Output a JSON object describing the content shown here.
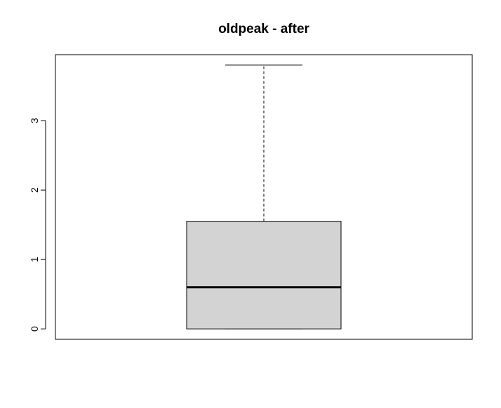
{
  "chart_data": {
    "type": "boxplot",
    "title": "oldpeak - after",
    "xlabel": "",
    "ylabel": "",
    "ylim": [
      -0.15,
      3.95
    ],
    "y_ticks": [
      {
        "value": 0,
        "label": "0"
      },
      {
        "value": 1,
        "label": "1"
      },
      {
        "value": 2,
        "label": "2"
      },
      {
        "value": 3,
        "label": "3"
      }
    ],
    "box": {
      "min": 0,
      "q1": 0,
      "median": 0.6,
      "q3": 1.55,
      "max": 3.8
    },
    "grid": false,
    "legend": "none",
    "colors": {
      "box_fill": "#d3d3d3",
      "stroke": "#000000"
    }
  }
}
